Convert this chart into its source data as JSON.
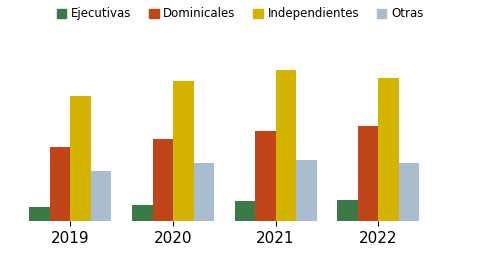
{
  "categories": [
    "2019",
    "2020",
    "2021",
    "2022"
  ],
  "series": {
    "Ejecutivas": [
      5.5,
      6.2,
      7.5,
      8.0
    ],
    "Dominicales": [
      28,
      31,
      34,
      36
    ],
    "Independientes": [
      47,
      53,
      57,
      54
    ],
    "Otras": [
      19,
      22,
      23,
      22
    ]
  },
  "colors": {
    "Ejecutivas": "#3a7a45",
    "Dominicales": "#c0461a",
    "Independientes": "#d4b400",
    "Otras": "#aabdcf"
  },
  "bar_width": 0.2,
  "xlim": [
    -0.5,
    3.9
  ],
  "ylim": [
    0,
    65
  ],
  "background_color": "#ffffff",
  "grid_color": "#cccccc",
  "legend_labels": [
    "Ejecutivas",
    "Dominicales",
    "Independientes",
    "Otras"
  ],
  "xlabel_fontsize": 11,
  "legend_fontsize": 8.5
}
